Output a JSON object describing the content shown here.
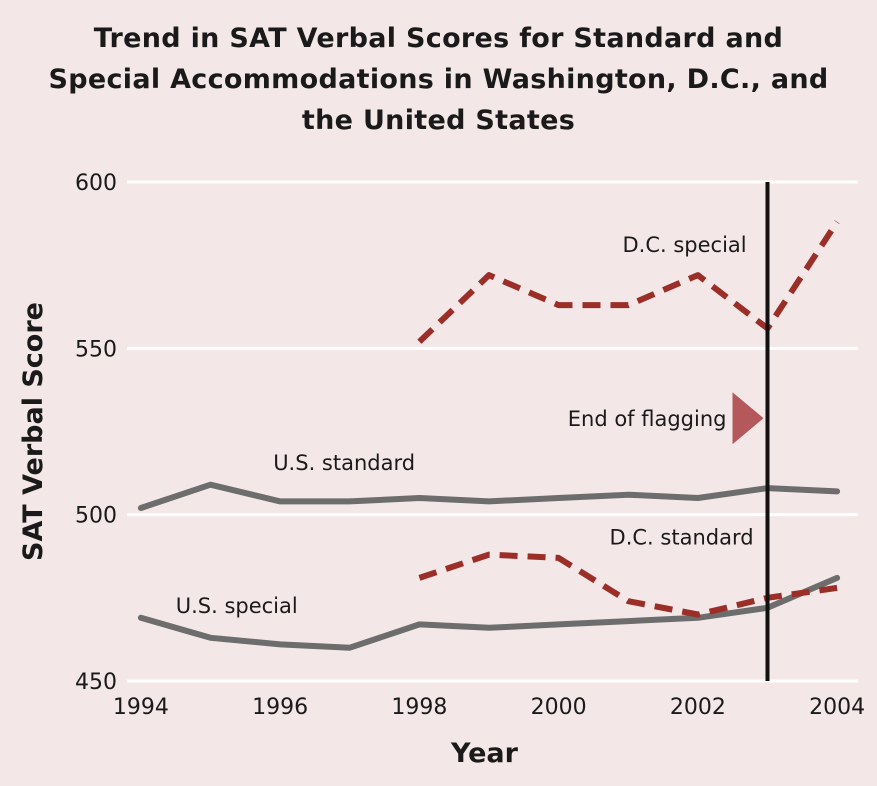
{
  "chart_data": {
    "type": "line",
    "title_lines": [
      "Trend in SAT Verbal Scores for Standard and",
      "Special Accommodations in Washington, D.C., and",
      "the United States"
    ],
    "xlabel": "Year",
    "ylabel": "SAT Verbal Score",
    "xlim": [
      1993.8,
      2004.3
    ],
    "ylim": [
      450,
      600
    ],
    "x_ticks": [
      1994,
      1996,
      1998,
      2000,
      2002,
      2004
    ],
    "y_ticks": [
      450,
      500,
      550,
      600
    ],
    "grid": "horizontal",
    "series": [
      {
        "name": "U.S. standard",
        "style": "solid",
        "color": "#6d6d6d",
        "x": [
          1994,
          1995,
          1996,
          1997,
          1998,
          1999,
          2000,
          2001,
          2002,
          2003,
          2004
        ],
        "values": [
          502,
          509,
          504,
          504,
          505,
          504,
          505,
          506,
          505,
          508,
          507
        ]
      },
      {
        "name": "U.S. special",
        "style": "solid",
        "color": "#6d6d6d",
        "x": [
          1994,
          1995,
          1996,
          1997,
          1998,
          1999,
          2000,
          2001,
          2002,
          2003,
          2004
        ],
        "values": [
          469,
          463,
          461,
          460,
          467,
          466,
          467,
          468,
          469,
          472,
          481
        ]
      },
      {
        "name": "D.C. special",
        "style": "dashed",
        "color": "#9c2e28",
        "x": [
          1998,
          1999,
          2000,
          2001,
          2002,
          2003,
          2004
        ],
        "values": [
          552,
          572,
          563,
          563,
          572,
          556,
          588
        ]
      },
      {
        "name": "D.C. standard",
        "style": "dashed",
        "color": "#9c2e28",
        "x": [
          1998,
          1999,
          2000,
          2001,
          2002,
          2003,
          2004
        ],
        "values": [
          481,
          488,
          487,
          474,
          470,
          475,
          478
        ]
      }
    ],
    "annotations": {
      "vertical_line_x": 2003,
      "vertical_line_label": "End of flagging"
    }
  },
  "colors": {
    "background": "#f3e7e8",
    "grid": "#ffffff",
    "us_line": "#6d6d6d",
    "dc_line": "#9c2e28",
    "marker_line": "#111111",
    "arrow": "#b5585b"
  }
}
